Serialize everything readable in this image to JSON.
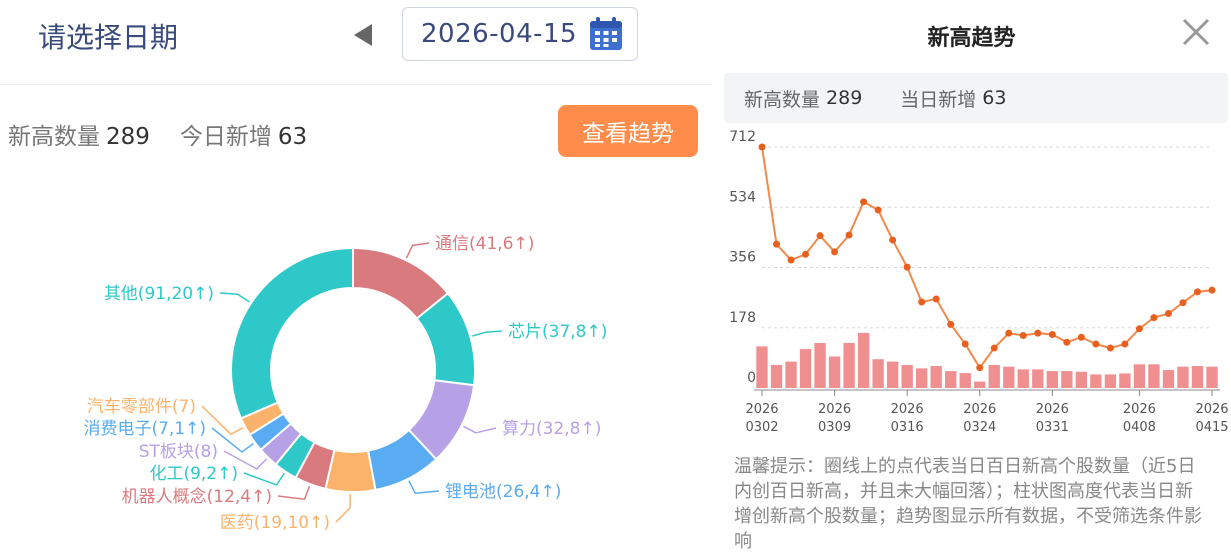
{
  "date_picker": {
    "title": "请选择日期",
    "date": "2026-04-15",
    "prev_icon": "triangle-left-icon",
    "calendar_icon": "calendar-icon"
  },
  "summary": {
    "count_label": "新高数量",
    "count_value": "289",
    "new_label": "今日新增",
    "new_value": "63",
    "trend_button": "查看趋势"
  },
  "sectors": {
    "items": [
      {
        "label": "通信(41,6↑)",
        "value": 41,
        "color": "#d97a7e"
      },
      {
        "label": "芯片(37,8↑)",
        "value": 37,
        "color": "#2ec8c8"
      },
      {
        "label": "算力(32,8↑)",
        "value": 32,
        "color": "#b7a1e6"
      },
      {
        "label": "锂电池(26,4↑)",
        "value": 26,
        "color": "#5aacf2"
      },
      {
        "label": "医药(19,10↑)",
        "value": 19,
        "color": "#fbb36b"
      },
      {
        "label": "机器人概念(12,4↑)",
        "value": 12,
        "color": "#d97a7e"
      },
      {
        "label": "化工(9,2↑)",
        "value": 9,
        "color": "#2ec8c8"
      },
      {
        "label": "ST板块(8)",
        "value": 8,
        "color": "#b7a1e6"
      },
      {
        "label": "消费电子(7,1↑)",
        "value": 7,
        "color": "#5aacf2"
      },
      {
        "label": "汽车零部件(7)",
        "value": 7,
        "color": "#fbb36b"
      },
      {
        "label": "其他(91,20↑)",
        "value": 91,
        "color": "#2ec8c8"
      }
    ]
  },
  "panel": {
    "title": "新高趋势",
    "close_icon": "close-icon",
    "count_label": "新高数量",
    "count_value": "289",
    "new_label": "当日新增",
    "new_value": "63",
    "tip": "温馨提示：圈线上的点代表当日百日新高个股数量（近5日内创百日新高，并且未大幅回落）；柱状图高度代表当日新增创新高个股数量；趋势图显示所有数据，不受筛选条件影响"
  },
  "chart_data": {
    "type": "line+bar",
    "y_ticks": [
      "712",
      "534",
      "356",
      "178",
      "0"
    ],
    "ylim": [
      0,
      712
    ],
    "x_ticks": [
      {
        "year": "2026",
        "date": "0302"
      },
      {
        "year": "2026",
        "date": "0309"
      },
      {
        "year": "2026",
        "date": "0316"
      },
      {
        "year": "2026",
        "date": "0324"
      },
      {
        "year": "2026",
        "date": "0331"
      },
      {
        "year": "2026",
        "date": "0408"
      },
      {
        "year": "2026",
        "date": "0415"
      }
    ],
    "line_values": [
      712,
      425,
      378,
      395,
      450,
      402,
      452,
      550,
      526,
      437,
      357,
      254,
      263,
      188,
      130,
      60,
      118,
      162,
      155,
      162,
      158,
      135,
      150,
      130,
      118,
      130,
      175,
      208,
      220,
      252,
      284,
      289
    ],
    "bar_values": [
      123,
      68,
      78,
      115,
      133,
      93,
      133,
      163,
      85,
      78,
      68,
      58,
      65,
      50,
      44,
      19,
      68,
      63,
      55,
      55,
      50,
      50,
      48,
      40,
      40,
      43,
      70,
      70,
      53,
      63,
      65,
      63
    ]
  }
}
